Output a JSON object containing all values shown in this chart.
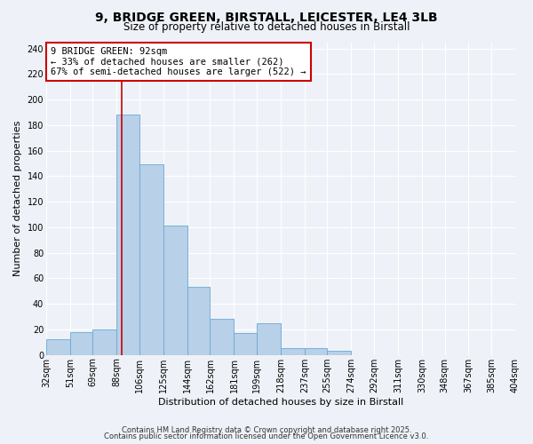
{
  "title": "9, BRIDGE GREEN, BIRSTALL, LEICESTER, LE4 3LB",
  "subtitle": "Size of property relative to detached houses in Birstall",
  "xlabel": "Distribution of detached houses by size in Birstall",
  "ylabel": "Number of detached properties",
  "bar_values": [
    12,
    18,
    20,
    188,
    149,
    101,
    53,
    28,
    17,
    25,
    5,
    5,
    3,
    0,
    0,
    0,
    0,
    0,
    0,
    0
  ],
  "bin_edges": [
    32,
    51,
    69,
    88,
    106,
    125,
    144,
    162,
    181,
    199,
    218,
    237,
    255,
    274,
    292,
    311,
    330,
    348,
    367,
    385,
    404
  ],
  "bin_labels": [
    "32sqm",
    "51sqm",
    "69sqm",
    "88sqm",
    "106sqm",
    "125sqm",
    "144sqm",
    "162sqm",
    "181sqm",
    "199sqm",
    "218sqm",
    "237sqm",
    "255sqm",
    "274sqm",
    "292sqm",
    "311sqm",
    "330sqm",
    "348sqm",
    "367sqm",
    "385sqm",
    "404sqm"
  ],
  "bar_color": "#b8d0e8",
  "bar_edge_color": "#6aaad4",
  "vline_x": 92,
  "vline_color": "#cc0000",
  "annotation_line1": "9 BRIDGE GREEN: 92sqm",
  "annotation_line2": "← 33% of detached houses are smaller (262)",
  "annotation_line3": "67% of semi-detached houses are larger (522) →",
  "annotation_box_color": "#ffffff",
  "annotation_box_edge": "#cc0000",
  "ylim": [
    0,
    245
  ],
  "yticks": [
    0,
    20,
    40,
    60,
    80,
    100,
    120,
    140,
    160,
    180,
    200,
    220,
    240
  ],
  "bg_color": "#eef2f8",
  "grid_color": "#ffffff",
  "footer1": "Contains HM Land Registry data © Crown copyright and database right 2025.",
  "footer2": "Contains public sector information licensed under the Open Government Licence v3.0.",
  "title_fontsize": 10,
  "subtitle_fontsize": 8.5,
  "axis_label_fontsize": 8,
  "tick_fontsize": 7,
  "footer_fontsize": 6
}
